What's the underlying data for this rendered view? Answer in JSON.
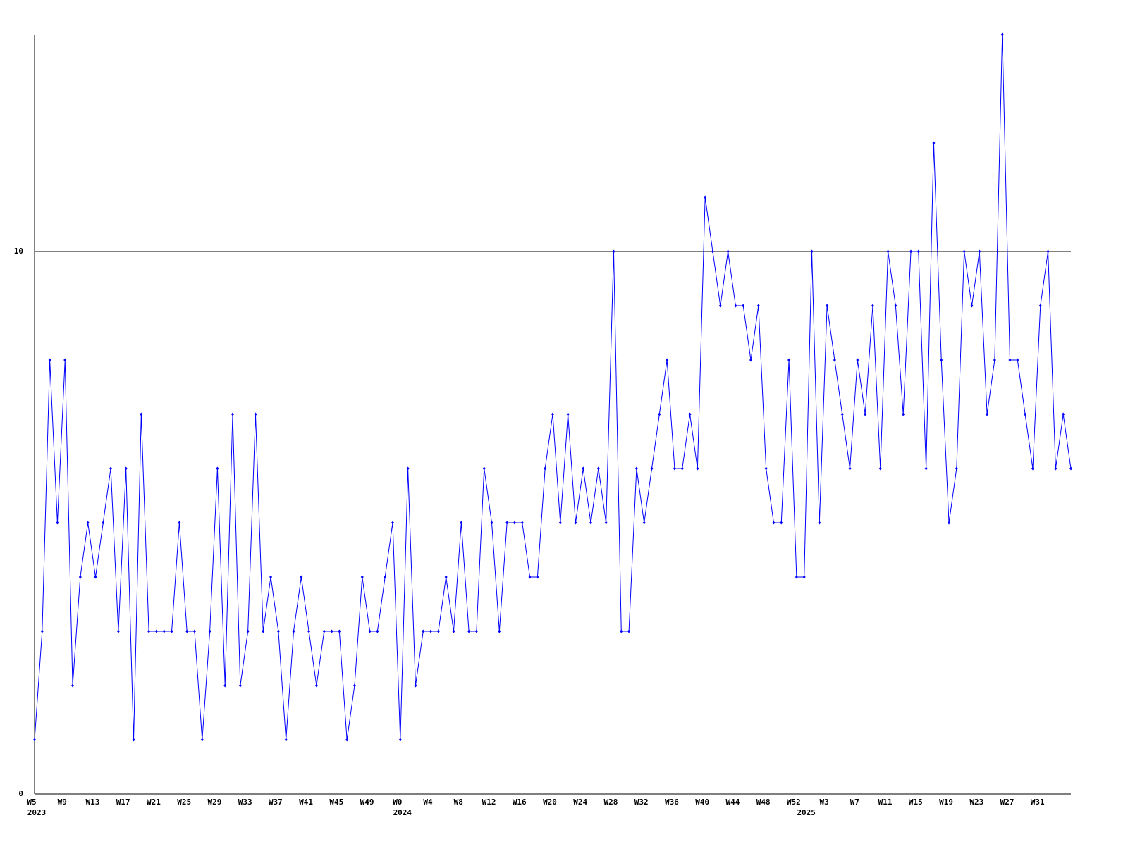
{
  "chart_data": {
    "type": "line",
    "categories": [
      "W5",
      null,
      null,
      null,
      "W9",
      null,
      null,
      null,
      "W13",
      null,
      null,
      null,
      "W17",
      null,
      null,
      null,
      "W21",
      null,
      null,
      null,
      "W25",
      null,
      null,
      null,
      "W29",
      null,
      null,
      null,
      "W33",
      null,
      null,
      null,
      "W37",
      null,
      null,
      null,
      "W41",
      null,
      null,
      null,
      "W45",
      null,
      null,
      null,
      "W49",
      null,
      null,
      null,
      "W0",
      null,
      null,
      null,
      "W4",
      null,
      null,
      null,
      "W8",
      null,
      null,
      null,
      "W12",
      null,
      null,
      null,
      "W16",
      null,
      null,
      null,
      "W20",
      null,
      null,
      null,
      "W24",
      null,
      null,
      null,
      "W28",
      null,
      null,
      null,
      "W32",
      null,
      null,
      null,
      "W36",
      null,
      null,
      null,
      "W40",
      null,
      null,
      null,
      "W44",
      null,
      null,
      null,
      "W48",
      null,
      null,
      null,
      "W52",
      null,
      null,
      null,
      "W3",
      null,
      null,
      null,
      "W7",
      null,
      null,
      null,
      "W11",
      null,
      null,
      null,
      "W15",
      null,
      null,
      null,
      "W19",
      null,
      null,
      null,
      "W23",
      null,
      null,
      null,
      "W27",
      null,
      null,
      null,
      "W31",
      null,
      null,
      null,
      null
    ],
    "years": [
      "2023",
      null,
      null,
      null,
      null,
      null,
      null,
      null,
      null,
      null,
      null,
      null,
      null,
      null,
      null,
      null,
      null,
      null,
      null,
      null,
      null,
      null,
      null,
      null,
      null,
      null,
      null,
      null,
      null,
      null,
      null,
      null,
      null,
      null,
      null,
      null,
      null,
      null,
      null,
      null,
      null,
      null,
      null,
      null,
      null,
      null,
      null,
      null,
      "2024",
      null,
      null,
      null,
      null,
      null,
      null,
      null,
      null,
      null,
      null,
      null,
      null,
      null,
      null,
      null,
      null,
      null,
      null,
      null,
      null,
      null,
      null,
      null,
      null,
      null,
      null,
      null,
      null,
      null,
      null,
      null,
      null,
      null,
      null,
      null,
      null,
      null,
      null,
      null,
      null,
      null,
      null,
      null,
      null,
      null,
      null,
      null,
      null,
      null,
      null,
      null,
      null,
      "2025",
      null,
      null,
      null,
      null,
      null,
      null,
      null,
      null,
      null,
      null,
      null,
      null,
      null,
      null,
      null,
      null,
      null,
      null,
      null,
      null,
      null,
      null,
      null,
      null,
      null,
      null,
      null,
      null,
      null,
      null,
      null,
      null,
      null,
      null,
      null
    ],
    "series": [
      {
        "color": "#0000ff",
        "values": [
          1,
          3,
          8,
          5,
          8,
          2,
          4,
          5,
          4,
          5,
          6,
          3,
          6,
          1,
          7,
          3,
          3,
          3,
          3,
          5,
          3,
          3,
          1,
          3,
          6,
          2,
          7,
          2,
          3,
          7,
          3,
          4,
          3,
          1,
          3,
          4,
          3,
          2,
          3,
          3,
          3,
          1,
          2,
          4,
          3,
          3,
          4,
          5,
          1,
          6,
          2,
          3,
          3,
          3,
          4,
          3,
          5,
          3,
          3,
          6,
          5,
          3,
          5,
          5,
          5,
          4,
          4,
          6,
          7,
          5,
          7,
          5,
          6,
          5,
          6,
          5,
          10,
          3,
          3,
          6,
          5,
          6,
          7,
          8,
          6,
          6,
          7,
          6,
          11,
          10,
          9,
          10,
          9,
          9,
          8,
          9,
          6,
          5,
          5,
          8,
          4,
          4,
          10,
          5,
          9,
          8,
          7,
          6,
          8,
          7,
          9,
          6,
          10,
          9,
          7,
          10,
          10,
          6,
          12,
          8,
          5,
          6,
          10,
          9,
          10,
          7,
          8,
          14,
          8,
          8,
          7,
          6,
          9,
          10,
          6,
          7,
          6
        ]
      }
    ],
    "ylim": [
      0,
      14
    ],
    "yticks": [
      0,
      10
    ],
    "grid": true
  }
}
